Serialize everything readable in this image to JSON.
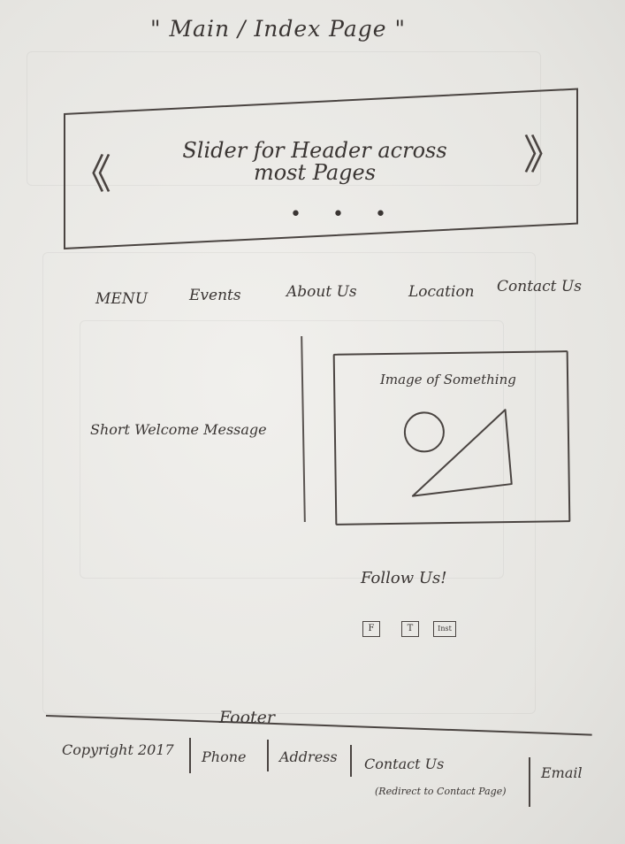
{
  "page_title": "\" Main / Index Page \"",
  "slider": {
    "text": "Slider for Header across most Pages",
    "prev_symbol": "《",
    "next_symbol": "》",
    "dots": "• • •"
  },
  "nav": {
    "items": [
      {
        "label": "MENU"
      },
      {
        "label": "Events"
      },
      {
        "label": "About Us"
      },
      {
        "label": "Location"
      },
      {
        "label": "Contact Us"
      }
    ]
  },
  "main": {
    "welcome_message": "Short Welcome Message",
    "image_caption": "Image of Something"
  },
  "social": {
    "title": "Follow Us!",
    "icons": [
      {
        "label": "F",
        "name": "facebook-icon"
      },
      {
        "label": "T",
        "name": "twitter-icon"
      },
      {
        "label": "Inst",
        "name": "instagram-icon"
      }
    ]
  },
  "footer": {
    "label": "Footer",
    "copyright": "Copyright 2017",
    "phone": "Phone",
    "address": "Address",
    "contact": "Contact Us",
    "contact_note": "(Redirect to Contact Page)",
    "email": "Email"
  }
}
